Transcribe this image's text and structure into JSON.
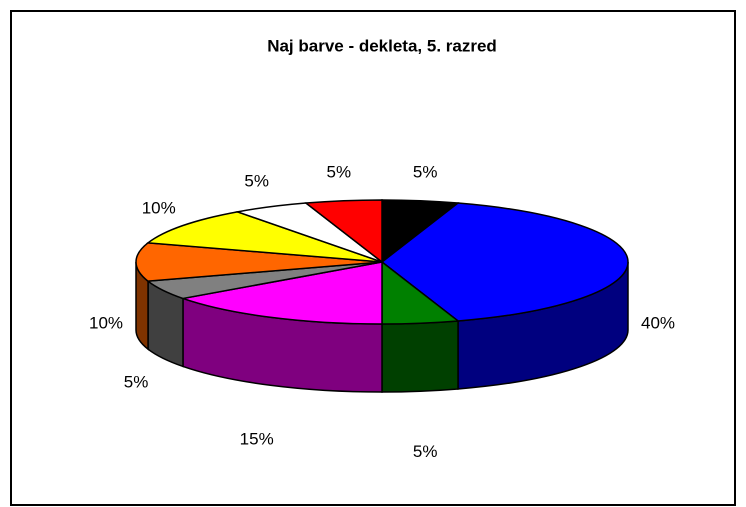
{
  "chart_data": {
    "type": "pie",
    "title": "Naj barve -  dekleta, 5. razred",
    "values": [
      5,
      40,
      5,
      15,
      5,
      10,
      10,
      5,
      5
    ],
    "value_labels": [
      "5%",
      "40%",
      "5%",
      "15%",
      "5%",
      "10%",
      "10%",
      "5%",
      "5%"
    ],
    "colors": [
      "#000000",
      "#0000ff",
      "#008000",
      "#ff00ff",
      "#808080",
      "#ff6600",
      "#ffff00",
      "#ffffff",
      "#ff0000"
    ]
  }
}
